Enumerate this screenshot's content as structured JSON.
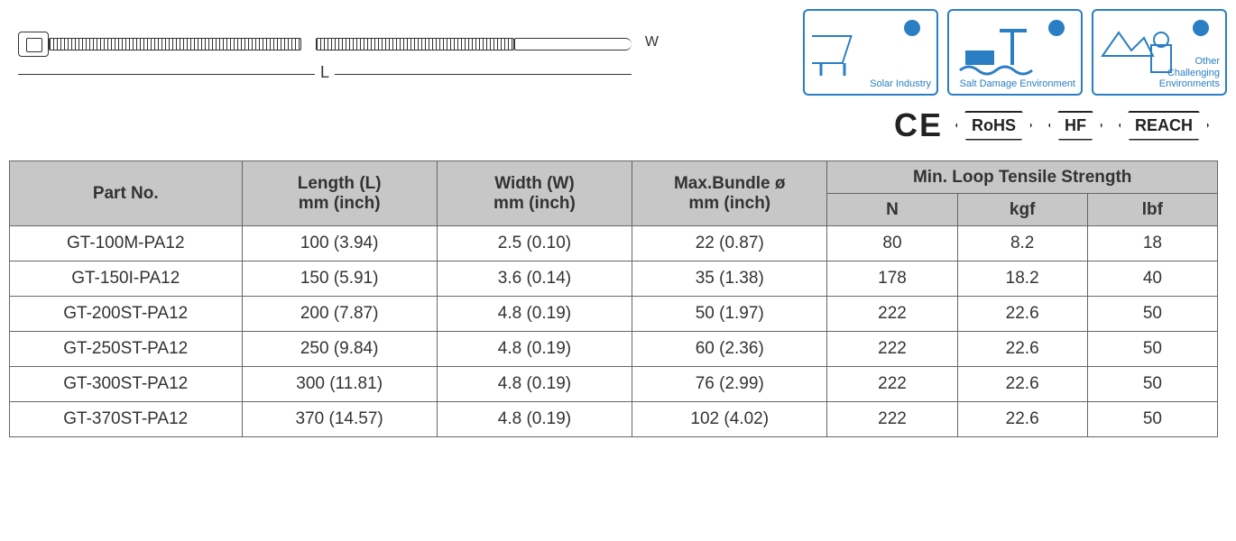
{
  "diagram": {
    "w_label": "W",
    "l_label": "L"
  },
  "application_icons": [
    {
      "key": "solar",
      "label": "Solar Industry"
    },
    {
      "key": "salt",
      "label": "Salt Damage Environment"
    },
    {
      "key": "other",
      "label": "Other\nChallenging\nEnvironments"
    }
  ],
  "icon_colors": {
    "border": "#2a7ec4",
    "fill": "#2a7ec4"
  },
  "badges": {
    "ce": [
      "C",
      "E"
    ],
    "hex": [
      "RoHS",
      "HF",
      "REACH"
    ]
  },
  "table": {
    "headers": {
      "part_no": "Part No.",
      "length": "Length (L)",
      "width": "Width (W)",
      "bundle": "Max.Bundle ø",
      "unit_sub": "mm (inch)",
      "tensile": "Min. Loop Tensile Strength",
      "n": "N",
      "kgf": "kgf",
      "lbf": "lbf"
    },
    "rows": [
      {
        "part": "GT-100M-PA12",
        "length": "100 (3.94)",
        "width": "2.5 (0.10)",
        "bundle": "22 (0.87)",
        "n": "80",
        "kgf": "8.2",
        "lbf": "18"
      },
      {
        "part": "GT-150I-PA12",
        "length": "150 (5.91)",
        "width": "3.6 (0.14)",
        "bundle": "35 (1.38)",
        "n": "178",
        "kgf": "18.2",
        "lbf": "40"
      },
      {
        "part": "GT-200ST-PA12",
        "length": "200 (7.87)",
        "width": "4.8 (0.19)",
        "bundle": "50 (1.97)",
        "n": "222",
        "kgf": "22.6",
        "lbf": "50"
      },
      {
        "part": "GT-250ST-PA12",
        "length": "250 (9.84)",
        "width": "4.8 (0.19)",
        "bundle": "60 (2.36)",
        "n": "222",
        "kgf": "22.6",
        "lbf": "50"
      },
      {
        "part": "GT-300ST-PA12",
        "length": "300 (11.81)",
        "width": "4.8 (0.19)",
        "bundle": "76 (2.99)",
        "n": "222",
        "kgf": "22.6",
        "lbf": "50"
      },
      {
        "part": "GT-370ST-PA12",
        "length": "370 (14.57)",
        "width": "4.8 (0.19)",
        "bundle": "102 (4.02)",
        "n": "222",
        "kgf": "22.6",
        "lbf": "50"
      }
    ],
    "header_bg": "#c7c7c7",
    "border_color": "#666666",
    "text_color": "#333333",
    "font_size_pt": 14
  }
}
